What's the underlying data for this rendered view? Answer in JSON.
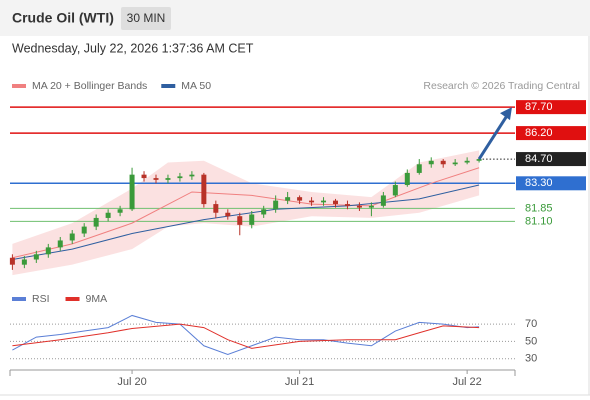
{
  "header": {
    "title": "Crude Oil (WTI)",
    "timeframe": "30 MIN",
    "datetime": "Wednesday, July 22, 2026 1:37:36 AM CET"
  },
  "chart_data": [
    {
      "type": "candlestick",
      "credit": "Research © 2026 Trading Central",
      "up_color": "#3a9a3a",
      "down_color": "#b83228",
      "x": [
        0,
        1,
        2,
        3,
        4,
        5,
        6,
        7,
        8,
        9,
        10,
        11,
        12,
        13,
        14,
        15,
        16,
        17,
        18,
        19,
        20,
        21,
        22,
        23,
        24,
        25,
        26,
        27,
        28,
        29,
        30,
        31,
        32,
        33,
        34,
        35,
        36,
        37,
        38,
        39
      ],
      "open": [
        79.0,
        78.6,
        78.9,
        79.2,
        79.6,
        80.0,
        80.4,
        80.8,
        81.3,
        81.6,
        81.8,
        83.8,
        83.6,
        83.5,
        83.6,
        83.7,
        83.8,
        82.1,
        81.6,
        81.4,
        80.9,
        81.5,
        81.8,
        82.3,
        82.5,
        82.3,
        82.2,
        82.3,
        82.1,
        82.0,
        81.9,
        82.0,
        82.6,
        83.2,
        83.9,
        84.4,
        84.6,
        84.4,
        84.5,
        84.6
      ],
      "high": [
        79.2,
        79.1,
        79.4,
        79.8,
        80.2,
        80.6,
        81.0,
        81.5,
        81.8,
        82.0,
        84.2,
        84.0,
        83.8,
        83.8,
        83.9,
        84.0,
        83.9,
        82.3,
        81.8,
        81.6,
        81.7,
        82.0,
        82.6,
        82.8,
        82.6,
        82.5,
        82.5,
        82.4,
        82.3,
        82.2,
        82.2,
        82.8,
        83.4,
        84.1,
        84.7,
        84.8,
        84.7,
        84.7,
        84.8,
        84.8
      ],
      "low": [
        78.3,
        78.4,
        78.7,
        79.0,
        79.4,
        79.8,
        80.2,
        80.6,
        81.1,
        81.4,
        81.7,
        83.4,
        83.3,
        83.3,
        83.4,
        83.5,
        81.9,
        81.3,
        81.2,
        80.3,
        80.7,
        81.3,
        81.6,
        82.1,
        82.1,
        82.0,
        82.0,
        81.9,
        81.8,
        81.7,
        81.4,
        81.9,
        82.5,
        83.1,
        83.8,
        84.2,
        84.2,
        84.3,
        84.4,
        84.5
      ],
      "close": [
        78.6,
        78.9,
        79.2,
        79.6,
        80.0,
        80.4,
        80.8,
        81.3,
        81.6,
        81.8,
        83.8,
        83.6,
        83.5,
        83.6,
        83.7,
        83.8,
        82.1,
        81.6,
        81.4,
        80.9,
        81.5,
        81.8,
        82.3,
        82.5,
        82.3,
        82.2,
        82.3,
        82.1,
        82.0,
        81.9,
        82.0,
        82.6,
        83.2,
        83.9,
        84.4,
        84.6,
        84.4,
        84.5,
        84.6,
        84.7
      ],
      "series": [
        {
          "name": "MA 20 + Bollinger Bands",
          "color": "#f08080",
          "x": [
            0,
            5,
            10,
            15,
            20,
            25,
            30,
            35,
            39
          ],
          "values": [
            79.0,
            79.8,
            81.0,
            82.8,
            82.6,
            82.1,
            82.0,
            83.3,
            84.2
          ]
        },
        {
          "name": "MA 50",
          "color": "#2f5fa0",
          "x": [
            0,
            5,
            10,
            16,
            22,
            28,
            34,
            39
          ],
          "values": [
            78.9,
            79.5,
            80.4,
            81.2,
            81.8,
            82.0,
            82.4,
            83.2
          ]
        }
      ],
      "bands": {
        "color": "#fadada",
        "x": [
          0,
          5,
          10,
          13,
          16,
          20,
          25,
          30,
          34,
          39
        ],
        "upper": [
          79.8,
          81.0,
          83.0,
          84.5,
          84.6,
          83.3,
          82.8,
          82.5,
          84.5,
          85.2
        ],
        "lower": [
          78.0,
          78.6,
          79.5,
          80.8,
          81.0,
          80.8,
          81.4,
          81.3,
          81.6,
          82.6
        ]
      },
      "levels": [
        {
          "value": 87.7,
          "label": "87.70",
          "color": "#e01010",
          "style": "solid",
          "label_style": "box"
        },
        {
          "value": 86.2,
          "label": "86.20",
          "color": "#e01010",
          "style": "solid",
          "label_style": "box"
        },
        {
          "value": 84.7,
          "label": "84.70",
          "color": "#222222",
          "style": "dotted",
          "label_style": "box"
        },
        {
          "value": 83.3,
          "label": "83.30",
          "color": "#2f6fd0",
          "style": "solid",
          "label_style": "box"
        },
        {
          "value": 81.85,
          "label": "81.85",
          "color": "#6fbf6f",
          "style": "solid",
          "label_style": "text"
        },
        {
          "value": 81.1,
          "label": "81.10",
          "color": "#6fbf6f",
          "style": "solid",
          "label_style": "text"
        }
      ],
      "target": 87.7,
      "xlim": [
        -0.2,
        42
      ],
      "ylim": [
        77.6,
        88.4
      ]
    },
    {
      "type": "line",
      "series": [
        {
          "name": "RSI",
          "color": "#5b7fd6",
          "x": [
            0,
            2,
            4,
            6,
            8,
            10,
            12,
            14,
            16,
            18,
            20,
            22,
            24,
            26,
            28,
            30,
            32,
            34,
            36,
            38,
            39
          ],
          "values": [
            40,
            55,
            58,
            62,
            66,
            80,
            72,
            70,
            45,
            35,
            45,
            55,
            52,
            52,
            48,
            45,
            62,
            72,
            70,
            66,
            67
          ]
        },
        {
          "name": "9MA",
          "color": "#e0302a",
          "x": [
            0,
            4,
            8,
            10,
            14,
            16,
            18,
            20,
            24,
            28,
            32,
            34,
            36,
            39
          ],
          "values": [
            45,
            52,
            60,
            65,
            70,
            66,
            52,
            42,
            50,
            52,
            52,
            60,
            68,
            66
          ]
        }
      ],
      "xlim": [
        -0.2,
        42
      ],
      "ylim": [
        17,
        84
      ],
      "yticks": [
        70,
        50,
        30
      ],
      "grid": true,
      "xticks": [
        {
          "value": 10,
          "label": "Jul 20"
        },
        {
          "value": 24,
          "label": "Jul 21"
        },
        {
          "value": 38,
          "label": "Jul 22"
        }
      ]
    }
  ]
}
